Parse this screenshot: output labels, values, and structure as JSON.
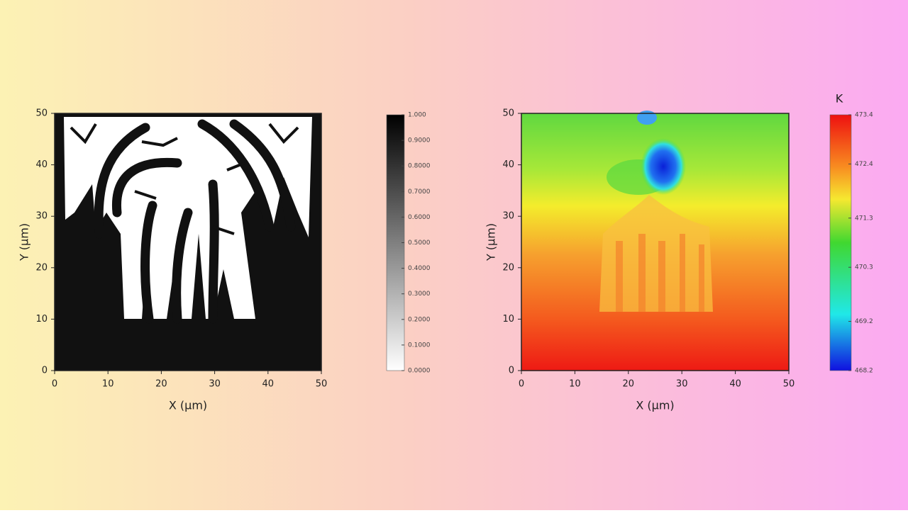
{
  "chart_data": [
    {
      "type": "heatmap",
      "xlabel": "X (μm)",
      "ylabel": "Y (μm)",
      "xlim": [
        0,
        50
      ],
      "ylim": [
        0,
        50
      ],
      "xticks": [
        0,
        10,
        20,
        30,
        40,
        50
      ],
      "yticks": [
        0,
        10,
        20,
        30,
        40,
        50
      ],
      "colorbar": {
        "clim": [
          0,
          1
        ],
        "ticks": [
          {
            "value": 1,
            "label": "1.000"
          },
          {
            "value": 0.9,
            "label": "0.9000"
          },
          {
            "value": 0.8,
            "label": "0.8000"
          },
          {
            "value": 0.7,
            "label": "0.7000"
          },
          {
            "value": 0.6,
            "label": "0.6000"
          },
          {
            "value": 0.5,
            "label": "0.5000"
          },
          {
            "value": 0.4,
            "label": "0.4000"
          },
          {
            "value": 0.3,
            "label": "0.3000"
          },
          {
            "value": 0.2,
            "label": "0.2000"
          },
          {
            "value": 0.1,
            "label": "0.1000"
          },
          {
            "value": 0,
            "label": "0.0000"
          }
        ]
      }
    },
    {
      "type": "heatmap",
      "xlabel": "X (μm)",
      "ylabel": "Y (μm)",
      "xlim": [
        0,
        50
      ],
      "ylim": [
        0,
        50
      ],
      "xticks": [
        0,
        10,
        20,
        30,
        40,
        50
      ],
      "yticks": [
        0,
        10,
        20,
        30,
        40,
        50
      ],
      "colorbar": {
        "label": "K",
        "clim": [
          468.2,
          473.4
        ],
        "ticks": [
          473.4,
          472.4,
          471.3,
          470.3,
          469.2,
          468.2
        ]
      }
    }
  ]
}
